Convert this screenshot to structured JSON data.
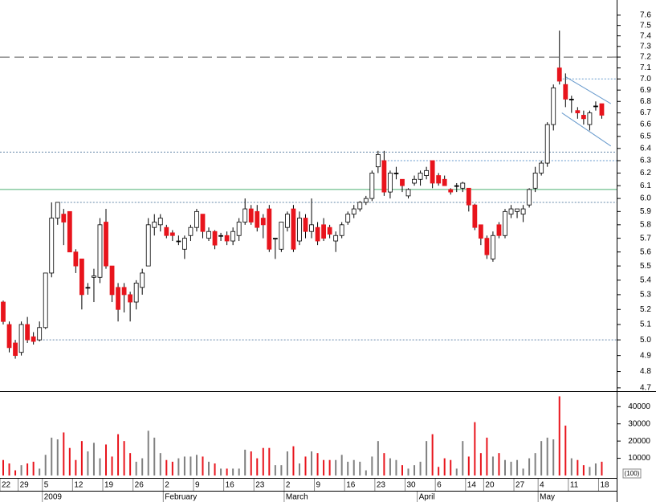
{
  "chart_data": {
    "type": "candlestick",
    "log_scale": true,
    "ylim": [
      4.68,
      7.75
    ],
    "yticks": [
      4.7,
      4.8,
      4.9,
      {
        "value": 5.0,
        "label": "5.0"
      },
      5.1,
      5.2,
      5.3,
      5.4,
      5.5,
      5.6,
      5.7,
      5.8,
      5.9,
      {
        "value": 6.0,
        "label": "6.0"
      },
      6.1,
      6.2,
      6.3,
      6.4,
      6.5,
      6.6,
      6.7,
      6.8,
      6.9,
      {
        "value": 7.0,
        "label": "7.0"
      },
      7.1,
      7.2,
      7.3,
      7.4,
      7.5,
      7.6
    ],
    "categories": [
      "22",
      null,
      null,
      "29",
      null,
      null,
      null,
      "5",
      null,
      null,
      null,
      null,
      "12",
      null,
      null,
      null,
      null,
      "19",
      null,
      null,
      null,
      null,
      "26",
      null,
      null,
      null,
      null,
      "2",
      null,
      null,
      null,
      null,
      "9",
      null,
      null,
      null,
      null,
      "16",
      null,
      null,
      null,
      null,
      "23",
      null,
      null,
      null,
      null,
      "2",
      null,
      null,
      null,
      null,
      "9",
      null,
      null,
      null,
      null,
      "16",
      null,
      null,
      null,
      null,
      "23",
      null,
      null,
      null,
      null,
      "30",
      null,
      null,
      null,
      null,
      "6",
      null,
      null,
      null,
      null,
      "14",
      null,
      null,
      "20",
      null,
      null,
      null,
      null,
      "27",
      null,
      null,
      null,
      "4",
      null,
      null,
      null,
      null,
      "11",
      null,
      null,
      null,
      null,
      "18"
    ],
    "months": [
      null,
      null,
      null,
      null,
      null,
      null,
      null,
      "2009",
      null,
      null,
      null,
      null,
      null,
      null,
      null,
      null,
      null,
      null,
      null,
      null,
      null,
      null,
      null,
      null,
      null,
      null,
      null,
      "February",
      null,
      null,
      null,
      null,
      null,
      null,
      null,
      null,
      null,
      null,
      null,
      null,
      null,
      null,
      null,
      null,
      null,
      null,
      null,
      "March",
      null,
      null,
      null,
      null,
      null,
      null,
      null,
      null,
      null,
      null,
      null,
      null,
      null,
      null,
      null,
      null,
      null,
      null,
      null,
      null,
      null,
      "April",
      null,
      null,
      null,
      null,
      null,
      null,
      null,
      null,
      null,
      null,
      null,
      null,
      null,
      null,
      null,
      null,
      null,
      null,
      null,
      "May",
      null,
      null,
      null,
      null,
      null,
      null,
      null,
      null,
      null,
      null
    ],
    "open": [
      5.25,
      5.1,
      4.98,
      4.92,
      5.1,
      5.02,
      5.0,
      5.08,
      5.45,
      5.85,
      5.88,
      5.9,
      5.6,
      5.55,
      5.35,
      5.42,
      5.42,
      5.82,
      5.5,
      5.35,
      5.35,
      5.3,
      5.25,
      5.35,
      5.5,
      5.78,
      5.8,
      5.78,
      5.74,
      5.68,
      5.62,
      5.72,
      5.78,
      5.88,
      5.7,
      5.75,
      5.72,
      5.72,
      5.68,
      5.72,
      5.82,
      5.92,
      5.9,
      5.85,
      5.92,
      5.7,
      5.62,
      5.78,
      5.92,
      5.68,
      5.85,
      5.75,
      5.78,
      5.8,
      5.78,
      5.68,
      5.72,
      5.82,
      5.88,
      5.92,
      5.97,
      6.0,
      6.25,
      6.3,
      6.05,
      6.2,
      6.15,
      6.02,
      6.12,
      6.15,
      6.18,
      6.3,
      6.18,
      6.15,
      6.07,
      6.1,
      6.08,
      6.08,
      5.95,
      5.8,
      5.7,
      5.55,
      5.8,
      5.72,
      5.88,
      5.9,
      5.88,
      5.95,
      6.08,
      6.2,
      6.28,
      6.6,
      7.1,
      6.95,
      6.82,
      6.72,
      6.68,
      6.6,
      6.76,
      6.78
    ],
    "high": [
      5.26,
      5.12,
      5.0,
      5.12,
      5.15,
      5.05,
      5.12,
      5.45,
      5.97,
      5.97,
      5.92,
      5.9,
      5.62,
      5.55,
      5.38,
      5.48,
      5.85,
      5.92,
      5.5,
      5.38,
      5.38,
      5.32,
      5.4,
      5.48,
      5.85,
      5.88,
      5.88,
      5.8,
      5.76,
      5.72,
      5.72,
      5.8,
      5.92,
      5.88,
      5.78,
      5.76,
      5.74,
      5.75,
      5.78,
      5.85,
      6.0,
      5.95,
      5.95,
      5.88,
      5.95,
      5.7,
      5.82,
      5.9,
      5.95,
      5.9,
      5.88,
      6.0,
      5.82,
      5.85,
      5.8,
      5.75,
      5.82,
      5.9,
      5.95,
      5.98,
      6.02,
      6.22,
      6.38,
      6.38,
      6.22,
      6.25,
      6.15,
      6.08,
      6.18,
      6.22,
      6.25,
      6.3,
      6.2,
      6.18,
      6.08,
      6.12,
      6.13,
      6.08,
      5.96,
      5.8,
      5.72,
      5.75,
      5.82,
      5.92,
      5.95,
      5.92,
      5.95,
      6.08,
      6.25,
      6.3,
      6.62,
      6.95,
      7.45,
      7.05,
      6.85,
      6.75,
      6.72,
      6.72,
      6.8,
      6.78
    ],
    "low": [
      5.1,
      4.92,
      4.88,
      4.9,
      4.98,
      4.97,
      4.99,
      5.07,
      5.42,
      5.8,
      5.65,
      5.6,
      5.45,
      5.2,
      5.3,
      5.25,
      5.38,
      5.48,
      5.25,
      5.12,
      5.18,
      5.12,
      5.2,
      5.3,
      5.5,
      5.72,
      5.75,
      5.7,
      5.68,
      5.65,
      5.55,
      5.68,
      5.75,
      5.7,
      5.68,
      5.62,
      5.68,
      5.65,
      5.65,
      5.68,
      5.8,
      5.8,
      5.75,
      5.7,
      5.6,
      5.55,
      5.6,
      5.75,
      5.6,
      5.65,
      5.7,
      5.7,
      5.65,
      5.68,
      5.7,
      5.6,
      5.7,
      5.8,
      5.85,
      5.9,
      5.95,
      5.98,
      6.2,
      6.02,
      6.0,
      6.15,
      6.05,
      6.0,
      6.1,
      6.1,
      6.15,
      6.08,
      6.1,
      6.1,
      6.03,
      6.05,
      6.05,
      5.9,
      5.76,
      5.65,
      5.55,
      5.53,
      5.7,
      5.7,
      5.85,
      5.85,
      5.82,
      5.93,
      6.05,
      6.18,
      6.25,
      6.55,
      6.95,
      6.75,
      6.7,
      6.65,
      6.6,
      6.55,
      6.72,
      6.65
    ],
    "close": [
      5.12,
      4.95,
      4.9,
      5.1,
      5.0,
      4.99,
      5.08,
      5.45,
      5.85,
      5.97,
      5.82,
      5.6,
      5.5,
      5.3,
      5.35,
      5.43,
      5.8,
      5.5,
      5.3,
      5.2,
      5.3,
      5.25,
      5.38,
      5.45,
      5.8,
      5.82,
      5.85,
      5.72,
      5.72,
      5.68,
      5.7,
      5.78,
      5.9,
      5.75,
      5.75,
      5.65,
      5.72,
      5.68,
      5.75,
      5.82,
      5.92,
      5.82,
      5.78,
      5.8,
      5.62,
      5.7,
      5.82,
      5.88,
      5.62,
      5.85,
      5.75,
      5.8,
      5.68,
      5.7,
      5.73,
      5.72,
      5.8,
      5.88,
      5.92,
      5.97,
      6.0,
      6.2,
      6.35,
      6.05,
      6.2,
      6.2,
      6.1,
      6.07,
      6.15,
      6.2,
      6.22,
      6.12,
      6.12,
      6.1,
      6.05,
      6.1,
      6.12,
      5.95,
      5.78,
      5.7,
      5.58,
      5.72,
      5.72,
      5.9,
      5.92,
      5.92,
      5.92,
      6.07,
      6.2,
      6.28,
      6.6,
      6.92,
      6.98,
      6.82,
      6.82,
      6.7,
      6.65,
      6.7,
      6.76,
      6.68
    ],
    "up_color": "#ffffff",
    "down_color": "#e8141c",
    "flat_color": "#000000",
    "hlines": [
      {
        "value": 7.2,
        "color": "#555555",
        "dash": "12 6"
      },
      {
        "value": 7.0,
        "color": "#6699cc",
        "dash": "2 2",
        "start": 92
      },
      {
        "value": 6.37,
        "color": "#6688aa",
        "dash": "2 2"
      },
      {
        "value": 6.3,
        "color": "#6699cc",
        "dash": "2 2",
        "start": 62
      },
      {
        "value": 6.07,
        "color": "#4caf70"
      },
      {
        "value": 5.97,
        "color": "#6688aa",
        "dash": "2 2",
        "start": 9
      },
      {
        "value": 5.0,
        "color": "#6688aa",
        "dash": "2 2",
        "start": 5
      }
    ],
    "trendlines": {
      "color": "#6699cc",
      "lines": [
        {
          "from": [
            93,
            7.02
          ],
          "to": [
            100.5,
            6.78
          ]
        },
        {
          "from": [
            92.4,
            6.7
          ],
          "to": [
            100.5,
            6.42
          ]
        }
      ]
    },
    "volume": {
      "values": [
        9000,
        7000,
        3000,
        6000,
        7000,
        8000,
        4000,
        12000,
        22000,
        21000,
        25000,
        16000,
        9000,
        20000,
        14000,
        19000,
        10000,
        18000,
        11000,
        24000,
        20000,
        13000,
        8000,
        10000,
        26000,
        22000,
        13000,
        9000,
        8000,
        10000,
        11000,
        11000,
        12000,
        11000,
        8000,
        7000,
        4000,
        4000,
        4000,
        4000,
        15000,
        14000,
        10000,
        16000,
        16000,
        6000,
        6000,
        14000,
        17000,
        7000,
        11000,
        14000,
        13000,
        9000,
        9000,
        9000,
        12000,
        8000,
        9000,
        8000,
        3000,
        11000,
        20000,
        13000,
        10000,
        9000,
        6000,
        4000,
        6000,
        8000,
        20000,
        24000,
        5000,
        10000,
        9000,
        4000,
        20000,
        11000,
        31000,
        13000,
        22000,
        11000,
        13000,
        9000,
        8000,
        9000,
        4000,
        10000,
        13000,
        20000,
        22000,
        21000,
        46000,
        29000,
        10000,
        9000,
        6000,
        5000,
        7000,
        8000
      ],
      "up_color": "#808080",
      "down_color": "#e8141c",
      "ylim": [
        0,
        49000
      ],
      "yticks": [
        10000,
        20000,
        30000,
        40000
      ],
      "unit": "(100)"
    }
  }
}
